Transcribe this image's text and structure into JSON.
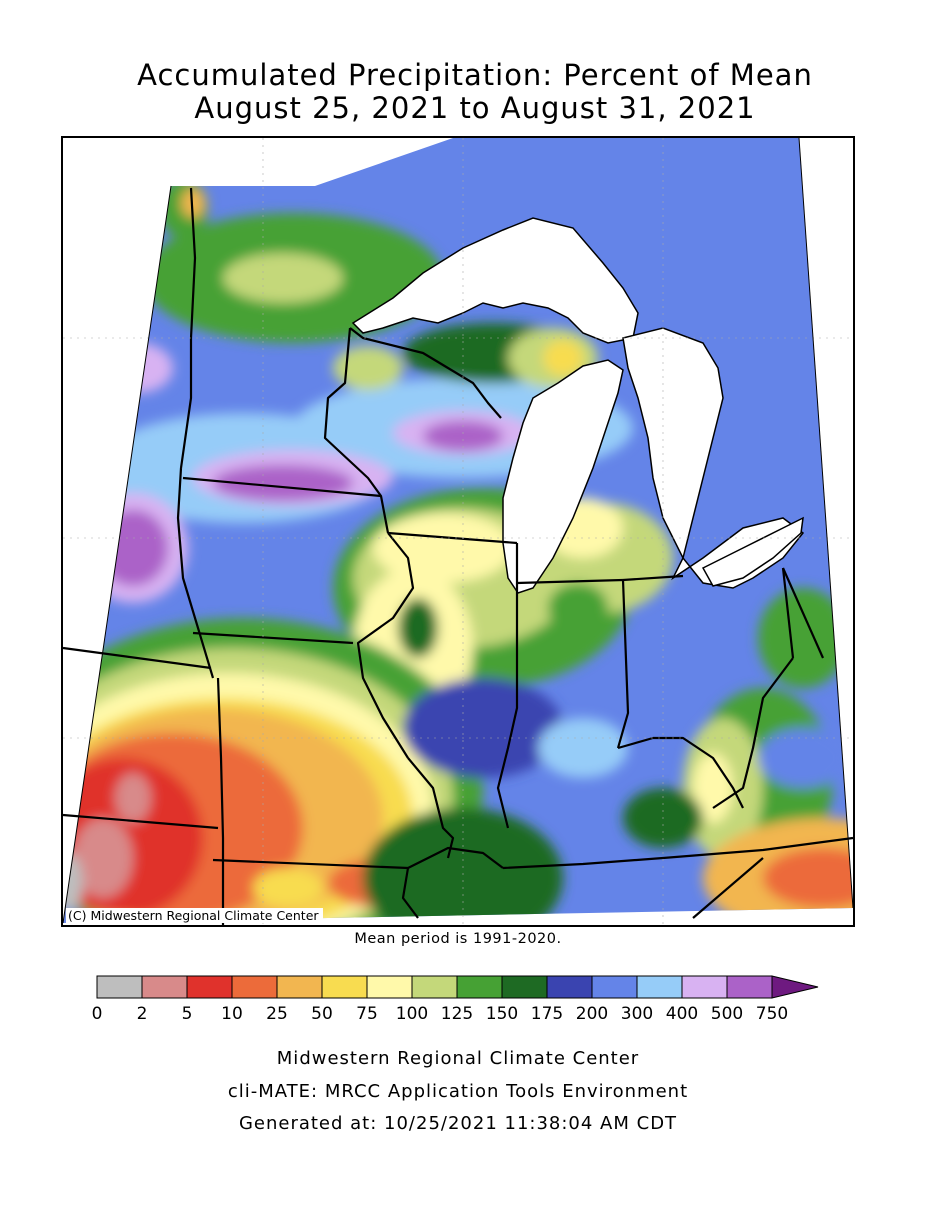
{
  "title": {
    "line1": "Accumulated Precipitation: Percent of Mean",
    "line2": "August 25, 2021 to August 31, 2021"
  },
  "map": {
    "copyright": "(C) Midwestern Regional Climate Center",
    "mean_note": "Mean period is 1991-2020."
  },
  "legend": {
    "colors": [
      "#bebebe",
      "#d88a8a",
      "#e0322c",
      "#ec6b3a",
      "#f2b650",
      "#f8dc50",
      "#fff9aa",
      "#c4d87a",
      "#46a134",
      "#1e6a23",
      "#3a44b0",
      "#6484e8",
      "#96ccf8",
      "#d8b2f2",
      "#ab62c8"
    ],
    "arrow_color": "#6e1a80",
    "tick_labels": [
      "0",
      "2",
      "5",
      "10",
      "25",
      "50",
      "75",
      "100",
      "125",
      "150",
      "175",
      "200",
      "300",
      "400",
      "500",
      "750"
    ]
  },
  "footer": {
    "line1": "Midwestern Regional Climate Center",
    "line2": "cli-MATE: MRCC Application Tools Environment",
    "line3": "Generated at: 10/25/2021 11:38:04 AM CDT"
  }
}
